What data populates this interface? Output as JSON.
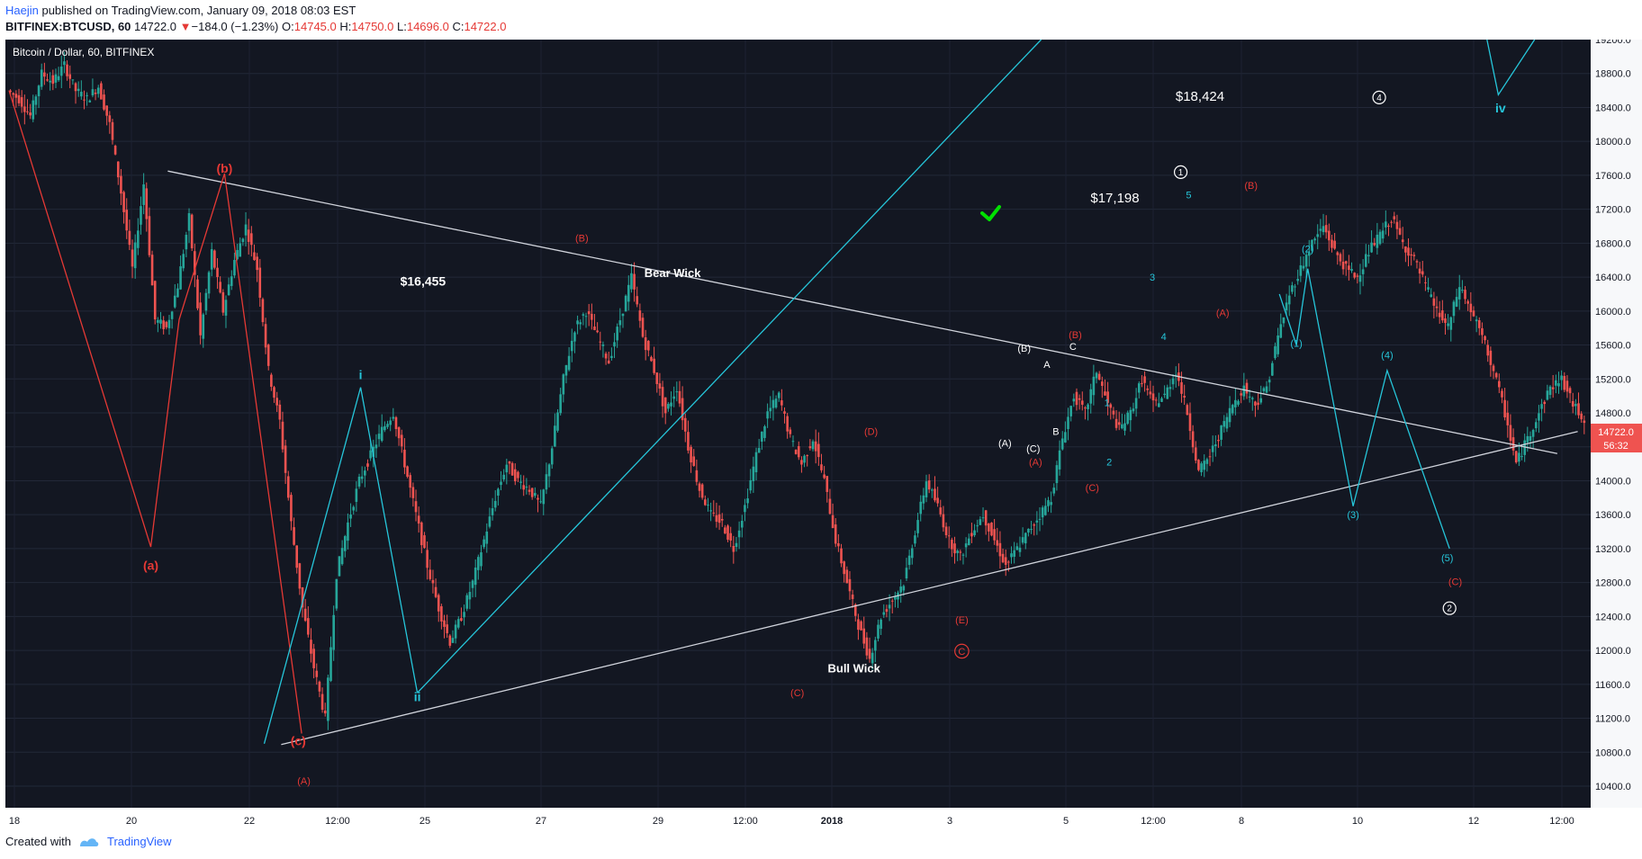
{
  "header": {
    "author": "Haejin",
    "published_text": " published on TradingView.com, January 09, 2018 08:03 EST",
    "symbol": "BITFINEX:BTCUSD, 60",
    "last": "14722.0",
    "change": "−184.0 (−1.23%)",
    "open_label": "O:",
    "open": "14745.0",
    "high_label": "H:",
    "high": "14750.0",
    "low_label": "L:",
    "low": "14696.0",
    "close_label": "C:",
    "close": "14722.0"
  },
  "footer": {
    "created_with": "Created with",
    "brand": "TradingView"
  },
  "colors": {
    "background": "#131722",
    "price_axis_bg": "#f7f8fa",
    "wave_red": "#e53935",
    "wave_cyan": "#26c6da",
    "trendline": "#d1d4dc",
    "candle_up": "#26a69a",
    "candle_down": "#ef5350",
    "check": "#00e000",
    "price_tag": "#ef5350"
  },
  "chart_data": {
    "type": "candlestick",
    "title": "Bitcoin / Dollar, 60, BITFINEX",
    "ylim": [
      10400,
      19200
    ],
    "y_ticks": [
      "19200.0",
      "18800.0",
      "18400.0",
      "18000.0",
      "17600.0",
      "17200.0",
      "16800.0",
      "16400.0",
      "16000.0",
      "15600.0",
      "15200.0",
      "14800.0",
      "14400.0",
      "14000.0",
      "13600.0",
      "13200.0",
      "12800.0",
      "12400.0",
      "12000.0",
      "11600.0",
      "11200.0",
      "10800.0",
      "10400.0"
    ],
    "x_ticks": [
      "18",
      "20",
      "22",
      "12:00",
      "25",
      "27",
      "29",
      "12:00",
      "2018",
      "3",
      "5",
      "12:00",
      "8",
      "10",
      "12",
      "12:00"
    ],
    "price_tag": "14722.0",
    "countdown": "56:32",
    "price_path": [
      [
        0,
        18600
      ],
      [
        1,
        18500
      ],
      [
        2,
        18300
      ],
      [
        3,
        18800
      ],
      [
        4,
        18700
      ],
      [
        5,
        18900
      ],
      [
        6,
        18600
      ],
      [
        7,
        18500
      ],
      [
        8,
        18650
      ],
      [
        9,
        18200
      ],
      [
        10,
        17400
      ],
      [
        11,
        16500
      ],
      [
        12,
        17500
      ],
      [
        13,
        15900
      ],
      [
        14,
        15800
      ],
      [
        15,
        16300
      ],
      [
        16,
        17100
      ],
      [
        17,
        15700
      ],
      [
        18,
        16700
      ],
      [
        19,
        16000
      ],
      [
        20,
        16600
      ],
      [
        21,
        17000
      ],
      [
        22,
        16500
      ],
      [
        23,
        15300
      ],
      [
        24,
        14700
      ],
      [
        25,
        13500
      ],
      [
        26,
        12500
      ],
      [
        27,
        11800
      ],
      [
        28,
        11200
      ],
      [
        29,
        12900
      ],
      [
        30,
        13500
      ],
      [
        31,
        14000
      ],
      [
        32,
        14300
      ],
      [
        33,
        14600
      ],
      [
        34,
        14800
      ],
      [
        35,
        14200
      ],
      [
        36,
        13600
      ],
      [
        37,
        13000
      ],
      [
        38,
        12500
      ],
      [
        39,
        12100
      ],
      [
        40,
        12400
      ],
      [
        41,
        12800
      ],
      [
        42,
        13300
      ],
      [
        43,
        13800
      ],
      [
        44,
        14200
      ],
      [
        45,
        14000
      ],
      [
        46,
        13900
      ],
      [
        47,
        13700
      ],
      [
        48,
        14400
      ],
      [
        49,
        15200
      ],
      [
        50,
        15800
      ],
      [
        51,
        16000
      ],
      [
        52,
        15700
      ],
      [
        53,
        15400
      ],
      [
        54,
        15900
      ],
      [
        55,
        16400
      ],
      [
        56,
        15700
      ],
      [
        57,
        15300
      ],
      [
        58,
        14800
      ],
      [
        59,
        15100
      ],
      [
        60,
        14400
      ],
      [
        61,
        13900
      ],
      [
        62,
        13600
      ],
      [
        63,
        13500
      ],
      [
        64,
        13200
      ],
      [
        65,
        13700
      ],
      [
        66,
        14300
      ],
      [
        67,
        14800
      ],
      [
        68,
        15000
      ],
      [
        69,
        14500
      ],
      [
        70,
        14200
      ],
      [
        71,
        14500
      ],
      [
        72,
        14000
      ],
      [
        73,
        13300
      ],
      [
        74,
        12800
      ],
      [
        75,
        12300
      ],
      [
        76,
        11900
      ],
      [
        77,
        12400
      ],
      [
        78,
        12600
      ],
      [
        79,
        12800
      ],
      [
        80,
        13400
      ],
      [
        81,
        14000
      ],
      [
        82,
        13700
      ],
      [
        83,
        13300
      ],
      [
        84,
        13100
      ],
      [
        85,
        13400
      ],
      [
        86,
        13600
      ],
      [
        87,
        13300
      ],
      [
        88,
        13000
      ],
      [
        89,
        13200
      ],
      [
        90,
        13400
      ],
      [
        91,
        13600
      ],
      [
        92,
        13800
      ],
      [
        93,
        14500
      ],
      [
        94,
        15000
      ],
      [
        95,
        14800
      ],
      [
        96,
        15300
      ],
      [
        97,
        14900
      ],
      [
        98,
        14600
      ],
      [
        99,
        14800
      ],
      [
        100,
        15200
      ],
      [
        101,
        14900
      ],
      [
        102,
        15000
      ],
      [
        103,
        15300
      ],
      [
        104,
        14800
      ],
      [
        105,
        14100
      ],
      [
        106,
        14300
      ],
      [
        107,
        14600
      ],
      [
        108,
        14900
      ],
      [
        109,
        15100
      ],
      [
        110,
        14900
      ],
      [
        111,
        15100
      ],
      [
        112,
        15700
      ],
      [
        113,
        16200
      ],
      [
        114,
        16500
      ],
      [
        115,
        16800
      ],
      [
        116,
        17000
      ],
      [
        117,
        16700
      ],
      [
        118,
        16500
      ],
      [
        119,
        16400
      ],
      [
        120,
        16700
      ],
      [
        121,
        16900
      ],
      [
        122,
        17100
      ],
      [
        123,
        16800
      ],
      [
        124,
        16600
      ],
      [
        125,
        16300
      ],
      [
        126,
        16000
      ],
      [
        127,
        15800
      ],
      [
        128,
        16300
      ],
      [
        129,
        16000
      ],
      [
        130,
        15700
      ],
      [
        131,
        15300
      ],
      [
        132,
        14800
      ],
      [
        133,
        14200
      ],
      [
        134,
        14500
      ],
      [
        135,
        14800
      ],
      [
        136,
        15100
      ],
      [
        137,
        15200
      ],
      [
        138,
        14900
      ],
      [
        139,
        14722
      ]
    ],
    "annotations": [
      {
        "text": "$16,455",
        "color": "#ffffff",
        "bold": true,
        "size": 14,
        "x": 36.5,
        "y": 16300
      },
      {
        "text": "$17,198",
        "color": "#ffffff",
        "bold": false,
        "size": 15,
        "x": 97.5,
        "y": 17280
      },
      {
        "text": "$18,424",
        "color": "#ffffff",
        "bold": false,
        "size": 15,
        "x": 105,
        "y": 18480
      },
      {
        "text": "Bear Wick",
        "color": "#ffffff",
        "bold": true,
        "size": 13,
        "x": 58.5,
        "y": 16400
      },
      {
        "text": "Bull Wick",
        "color": "#ffffff",
        "bold": true,
        "size": 13,
        "x": 74.5,
        "y": 11740
      },
      {
        "text": "(a)",
        "color": "#e53935",
        "bold": true,
        "size": 14,
        "x": 12.5,
        "y": 12950
      },
      {
        "text": "(b)",
        "color": "#e53935",
        "bold": true,
        "size": 14,
        "x": 19,
        "y": 17630
      },
      {
        "text": "(c)",
        "color": "#e53935",
        "bold": true,
        "size": 14,
        "x": 25.5,
        "y": 10880
      },
      {
        "text": "(A)",
        "color": "#e53935",
        "bold": false,
        "size": 11,
        "x": 26,
        "y": 10420
      },
      {
        "text": "(B)",
        "color": "#e53935",
        "bold": false,
        "size": 11,
        "x": 50.5,
        "y": 16820
      },
      {
        "text": "(C)",
        "color": "#e53935",
        "bold": false,
        "size": 11,
        "x": 69.5,
        "y": 11460
      },
      {
        "text": "(D)",
        "color": "#e53935",
        "bold": false,
        "size": 11,
        "x": 76,
        "y": 14540
      },
      {
        "text": "(E)",
        "color": "#e53935",
        "bold": false,
        "size": 11,
        "x": 84,
        "y": 12320
      },
      {
        "text": "C",
        "color": "#e53935",
        "bold": false,
        "size": 11,
        "x": 84,
        "y": 11950,
        "circle": true
      },
      {
        "text": "(A)",
        "color": "#e53935",
        "bold": false,
        "size": 11,
        "x": 90.5,
        "y": 14180
      },
      {
        "text": "(B)",
        "color": "#e53935",
        "bold": false,
        "size": 11,
        "x": 94,
        "y": 15680
      },
      {
        "text": "(C)",
        "color": "#e53935",
        "bold": false,
        "size": 11,
        "x": 95.5,
        "y": 13880
      },
      {
        "text": "(A)",
        "color": "#e53935",
        "bold": false,
        "size": 11,
        "x": 107,
        "y": 15940
      },
      {
        "text": "(B)",
        "color": "#e53935",
        "bold": false,
        "size": 11,
        "x": 109.5,
        "y": 17440
      },
      {
        "text": "(C)",
        "color": "#e53935",
        "bold": false,
        "size": 11,
        "x": 127.5,
        "y": 12770
      },
      {
        "text": "i",
        "color": "#26c6da",
        "bold": true,
        "size": 14,
        "x": 31,
        "y": 15200
      },
      {
        "text": "ii",
        "color": "#26c6da",
        "bold": true,
        "size": 14,
        "x": 36,
        "y": 11400
      },
      {
        "text": "iv",
        "color": "#26c6da",
        "bold": true,
        "size": 14,
        "x": 131.5,
        "y": 18340
      },
      {
        "text": "(A)",
        "color": "#ffffff",
        "bold": false,
        "size": 11,
        "x": 87.8,
        "y": 14400
      },
      {
        "text": "(B)",
        "color": "#ffffff",
        "bold": false,
        "size": 11,
        "x": 89.5,
        "y": 15520
      },
      {
        "text": "(C)",
        "color": "#ffffff",
        "bold": false,
        "size": 11,
        "x": 90.3,
        "y": 14340
      },
      {
        "text": "A",
        "color": "#ffffff",
        "bold": false,
        "size": 11,
        "x": 91.5,
        "y": 15330
      },
      {
        "text": "B",
        "color": "#ffffff",
        "bold": false,
        "size": 11,
        "x": 92.3,
        "y": 14540
      },
      {
        "text": "C",
        "color": "#ffffff",
        "bold": false,
        "size": 11,
        "x": 93.8,
        "y": 15540
      },
      {
        "text": "1",
        "color": "#26c6da",
        "bold": false,
        "size": 11,
        "x": 96.8,
        "y": 14880
      },
      {
        "text": "2",
        "color": "#26c6da",
        "bold": false,
        "size": 11,
        "x": 97,
        "y": 14180
      },
      {
        "text": "3",
        "color": "#26c6da",
        "bold": false,
        "size": 11,
        "x": 100.8,
        "y": 16360
      },
      {
        "text": "4",
        "color": "#26c6da",
        "bold": false,
        "size": 11,
        "x": 101.8,
        "y": 15660
      },
      {
        "text": "5",
        "color": "#26c6da",
        "bold": false,
        "size": 11,
        "x": 104,
        "y": 17330
      },
      {
        "text": "(1)",
        "color": "#26c6da",
        "bold": false,
        "size": 11,
        "x": 113.5,
        "y": 15580
      },
      {
        "text": "(2)",
        "color": "#26c6da",
        "bold": false,
        "size": 11,
        "x": 114.5,
        "y": 16690
      },
      {
        "text": "(3)",
        "color": "#26c6da",
        "bold": false,
        "size": 11,
        "x": 118.5,
        "y": 13560
      },
      {
        "text": "(4)",
        "color": "#26c6da",
        "bold": false,
        "size": 11,
        "x": 121.5,
        "y": 15440
      },
      {
        "text": "(5)",
        "color": "#26c6da",
        "bold": false,
        "size": 11,
        "x": 126.8,
        "y": 13050
      },
      {
        "text": "1",
        "color": "#ffffff",
        "bold": false,
        "size": 10,
        "x": 103.3,
        "y": 17600,
        "circle": true
      },
      {
        "text": "4",
        "color": "#ffffff",
        "bold": false,
        "size": 10,
        "x": 120.8,
        "y": 18480,
        "circle": true
      },
      {
        "text": "2",
        "color": "#ffffff",
        "bold": false,
        "size": 10,
        "x": 127,
        "y": 12460,
        "circle": true
      }
    ],
    "lines": [
      {
        "color": "#d1d4dc",
        "points": [
          [
            14,
            17650
          ],
          [
            136.5,
            14320
          ]
        ]
      },
      {
        "color": "#d1d4dc",
        "points": [
          [
            24,
            10890
          ],
          [
            138.3,
            14580
          ]
        ]
      },
      {
        "color": "#26c6da",
        "points": [
          [
            36,
            11500
          ],
          [
            91,
            19200
          ]
        ]
      },
      {
        "color": "#e53935",
        "points": [
          [
            0,
            18600
          ],
          [
            12.5,
            13220
          ],
          [
            15,
            15900
          ],
          [
            19,
            17620
          ],
          [
            25.8,
            11020
          ]
        ]
      },
      {
        "color": "#26c6da",
        "points": [
          [
            22.5,
            10900
          ],
          [
            31,
            15100
          ],
          [
            36,
            11500
          ]
        ]
      },
      {
        "color": "#26c6da",
        "points": [
          [
            112,
            16200
          ],
          [
            113.5,
            15600
          ],
          [
            114.5,
            16500
          ],
          [
            118.5,
            13700
          ],
          [
            121.5,
            15300
          ],
          [
            127,
            13200
          ]
        ]
      },
      {
        "color": "#26c6da",
        "points": [
          [
            130.3,
            19200
          ],
          [
            131.3,
            18550
          ],
          [
            134.5,
            19200
          ]
        ]
      }
    ]
  }
}
